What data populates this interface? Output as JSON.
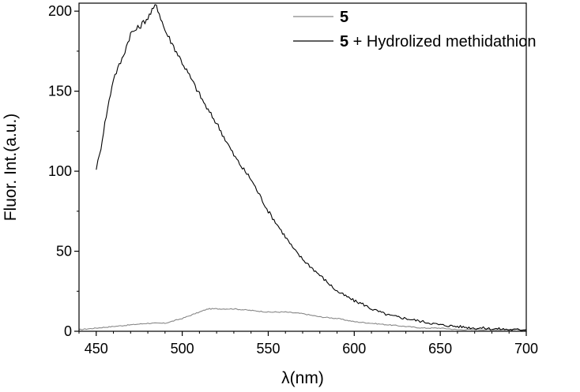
{
  "chart_data": {
    "type": "line",
    "xlabel": "λ(nm)",
    "ylabel": "Fluor. Int.(a.u.)",
    "xlim": [
      440,
      700
    ],
    "ylim": [
      0,
      205
    ],
    "x_ticks": [
      450,
      500,
      550,
      600,
      650,
      700
    ],
    "y_ticks": [
      0,
      50,
      100,
      150,
      200
    ],
    "grid": false,
    "legend_position": "top-right",
    "series": [
      {
        "name_bold": "5",
        "name_rest": "",
        "color": "#888888",
        "x": [
          440,
          450,
          460,
          470,
          480,
          490,
          500,
          510,
          515,
          520,
          530,
          540,
          550,
          560,
          570,
          580,
          590,
          600,
          610,
          620,
          630,
          640,
          650,
          660,
          670,
          680,
          690,
          700
        ],
        "y": [
          1,
          2,
          3,
          4,
          5,
          5,
          8,
          12,
          14,
          14,
          14,
          13,
          12,
          12,
          11,
          9,
          8,
          6,
          5,
          4,
          3,
          2,
          2,
          1,
          1,
          1,
          1,
          1
        ]
      },
      {
        "name_bold": "5",
        "name_rest": " + Hydrolized methidathion",
        "color": "#000000",
        "x": [
          450,
          452,
          455,
          460,
          465,
          470,
          475,
          480,
          485,
          490,
          495,
          500,
          505,
          510,
          515,
          520,
          525,
          530,
          535,
          540,
          545,
          550,
          555,
          560,
          565,
          570,
          575,
          580,
          585,
          590,
          595,
          600,
          605,
          610,
          615,
          620,
          625,
          630,
          635,
          640,
          645,
          650,
          655,
          660,
          665,
          670,
          675,
          680,
          685,
          690,
          695,
          700
        ],
        "y": [
          102,
          110,
          130,
          158,
          170,
          186,
          190,
          196,
          204,
          188,
          178,
          168,
          158,
          148,
          138,
          130,
          120,
          110,
          102,
          95,
          85,
          75,
          67,
          59,
          51,
          45,
          40,
          35,
          30,
          25,
          22,
          19,
          17,
          14,
          12,
          10,
          9,
          8,
          7,
          6,
          5,
          4,
          3.5,
          3,
          2.5,
          2,
          2,
          1.5,
          1.5,
          1,
          1,
          1
        ]
      }
    ]
  }
}
